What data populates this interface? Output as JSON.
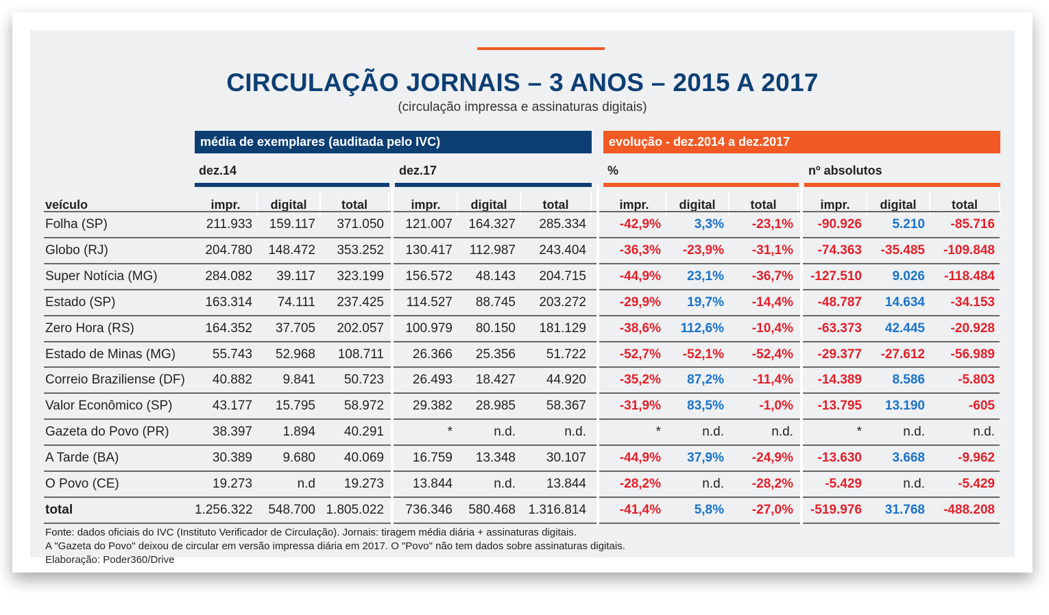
{
  "title": "CIRCULAÇÃO JORNAIS – 3 ANOS – 2015 A 2017",
  "subtitle": "(circulação impressa e assinaturas digitais)",
  "header_bars": {
    "left": "média de exemplares (auditada pelo IVC)",
    "right": "evolução - dez.2014 a dez.2017"
  },
  "groups": {
    "g1": "dez.14",
    "g2": "dez.17",
    "g3": "%",
    "g4": "nº absolutos"
  },
  "veiculo_label": "veículo",
  "columns": [
    "impr.",
    "digital",
    "total",
    "impr.",
    "digital",
    "total",
    "impr.",
    "digital",
    "total",
    "impr.",
    "digital",
    "total"
  ],
  "colors": {
    "navy": "#0d3f73",
    "orange": "#f15a24",
    "negative": "#e3202a",
    "positive": "#1a73c8"
  },
  "rows": [
    {
      "name": "Folha (SP)",
      "values": [
        "211.933",
        "159.117",
        "371.050",
        "121.007",
        "164.327",
        "285.334",
        "-42,9%",
        "3,3%",
        "-23,1%",
        "-90.926",
        "5.210",
        "-85.716"
      ]
    },
    {
      "name": "Globo (RJ)",
      "values": [
        "204.780",
        "148.472",
        "353.252",
        "130.417",
        "112.987",
        "243.404",
        "-36,3%",
        "-23,9%",
        "-31,1%",
        "-74.363",
        "-35.485",
        "-109.848"
      ]
    },
    {
      "name": "Super Notícia (MG)",
      "values": [
        "284.082",
        "39.117",
        "323.199",
        "156.572",
        "48.143",
        "204.715",
        "-44,9%",
        "23,1%",
        "-36,7%",
        "-127.510",
        "9.026",
        "-118.484"
      ]
    },
    {
      "name": "Estado (SP)",
      "values": [
        "163.314",
        "74.111",
        "237.425",
        "114.527",
        "88.745",
        "203.272",
        "-29,9%",
        "19,7%",
        "-14,4%",
        "-48.787",
        "14.634",
        "-34.153"
      ]
    },
    {
      "name": "Zero Hora (RS)",
      "values": [
        "164.352",
        "37.705",
        "202.057",
        "100.979",
        "80.150",
        "181.129",
        "-38,6%",
        "112,6%",
        "-10,4%",
        "-63.373",
        "42.445",
        "-20.928"
      ]
    },
    {
      "name": "Estado de Minas (MG)",
      "values": [
        "55.743",
        "52.968",
        "108.711",
        "26.366",
        "25.356",
        "51.722",
        "-52,7%",
        "-52,1%",
        "-52,4%",
        "-29.377",
        "-27.612",
        "-56.989"
      ]
    },
    {
      "name": "Correio Braziliense (DF)",
      "values": [
        "40.882",
        "9.841",
        "50.723",
        "26.493",
        "18.427",
        "44.920",
        "-35,2%",
        "87,2%",
        "-11,4%",
        "-14.389",
        "8.586",
        "-5.803"
      ]
    },
    {
      "name": "Valor Econômico (SP)",
      "values": [
        "43.177",
        "15.795",
        "58.972",
        "29.382",
        "28.985",
        "58.367",
        "-31,9%",
        "83,5%",
        "-1,0%",
        "-13.795",
        "13.190",
        "-605"
      ]
    },
    {
      "name": "Gazeta do Povo (PR)",
      "values": [
        "38.397",
        "1.894",
        "40.291",
        "*",
        "n.d.",
        "n.d.",
        "*",
        "n.d.",
        "n.d.",
        "*",
        "n.d.",
        "n.d."
      ]
    },
    {
      "name": "A Tarde (BA)",
      "values": [
        "30.389",
        "9.680",
        "40.069",
        "16.759",
        "13.348",
        "30.107",
        "-44,9%",
        "37,9%",
        "-24,9%",
        "-13.630",
        "3.668",
        "-9.962"
      ]
    },
    {
      "name": "O Povo (CE)",
      "values": [
        "19.273",
        "n.d",
        "19.273",
        "13.844",
        "n.d.",
        "13.844",
        "-28,2%",
        "n.d.",
        "-28,2%",
        "-5.429",
        "n.d.",
        "-5.429"
      ]
    },
    {
      "name": "total",
      "values": [
        "1.256.322",
        "548.700",
        "1.805.022",
        "736.346",
        "580.468",
        "1.316.814",
        "-41,4%",
        "5,8%",
        "-27,0%",
        "-519.976",
        "31.768",
        "-488.208"
      ]
    }
  ],
  "footer": [
    "Fonte: dados oficiais do IVC (Instituto Verificador de Circulação). Jornais: tiragem média diária + assinaturas digitais.",
    "A \"Gazeta do Povo\" deixou de circular em versão impressa diária em 2017. O \"Povo\" não tem dados sobre assinaturas digitais.",
    "Elaboração: Poder360/Drive"
  ]
}
